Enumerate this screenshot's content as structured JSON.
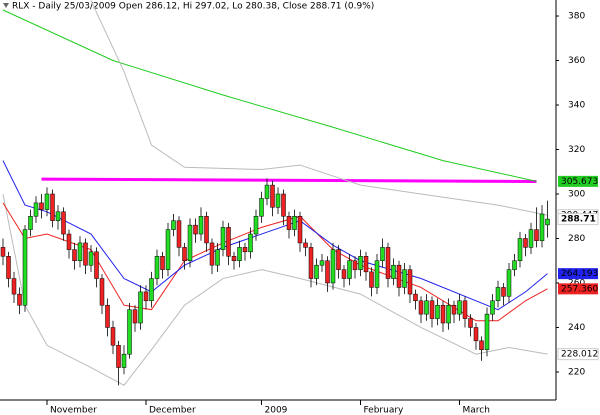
{
  "chart_data": {
    "type": "candlestick",
    "title": "RLX - Daily 25/03/2009 Open 286.12, Hi 297.02, Lo 280.38, Close 288.71 (0.9%)",
    "categories": [
      null,
      null,
      null,
      null,
      null,
      null,
      null,
      null,
      "November",
      null,
      null,
      null,
      null,
      null,
      null,
      null,
      null,
      null,
      null,
      null,
      null,
      null,
      null,
      null,
      null,
      null,
      "December",
      null,
      null,
      null,
      null,
      null,
      null,
      null,
      null,
      null,
      null,
      null,
      null,
      null,
      null,
      null,
      null,
      null,
      null,
      null,
      null,
      "2009",
      null,
      null,
      null,
      null,
      null,
      null,
      null,
      null,
      null,
      null,
      null,
      null,
      null,
      null,
      null,
      null,
      null,
      "February",
      null,
      null,
      null,
      null,
      null,
      null,
      null,
      null,
      null,
      null,
      null,
      null,
      null,
      null,
      null,
      null,
      null,
      "March",
      null,
      null,
      null,
      null,
      null,
      null,
      null,
      null,
      null,
      null,
      null,
      null,
      null,
      null,
      null,
      null
    ],
    "open": [
      276,
      272,
      262,
      255,
      250,
      284,
      290,
      296,
      293,
      300,
      288,
      292,
      282,
      275,
      270,
      278,
      268,
      274,
      262,
      250,
      240,
      232,
      222,
      228,
      248,
      242,
      256,
      252,
      262,
      272,
      266,
      284,
      288,
      276,
      270,
      286,
      282,
      290,
      278,
      268,
      275,
      285,
      272,
      270,
      276,
      274,
      282,
      290,
      298,
      304,
      294,
      300,
      290,
      284,
      290,
      278,
      276,
      262,
      268,
      270,
      260,
      275,
      266,
      262,
      270,
      266,
      272,
      265,
      258,
      270,
      276,
      262,
      268,
      258,
      266,
      255,
      252,
      246,
      252,
      244,
      250,
      242,
      250,
      246,
      252,
      244,
      240,
      234,
      230,
      246,
      252,
      258,
      254,
      266,
      270,
      280,
      276,
      284,
      279,
      286.12
    ],
    "high": [
      280,
      274,
      265,
      258,
      286,
      293,
      299,
      300,
      303,
      302,
      295,
      294,
      284,
      278,
      281,
      280,
      277,
      276,
      264,
      253,
      243,
      234,
      232,
      251,
      250,
      259,
      259,
      265,
      275,
      274,
      287,
      291,
      290,
      278,
      289,
      289,
      294,
      292,
      280,
      278,
      288,
      287,
      274,
      279,
      278,
      285,
      293,
      301,
      307,
      306,
      303,
      302,
      292,
      293,
      292,
      280,
      278,
      271,
      273,
      272,
      278,
      277,
      268,
      273,
      272,
      275,
      274,
      267,
      273,
      280,
      278,
      271,
      270,
      269,
      268,
      257,
      254,
      255,
      254,
      253,
      252,
      253,
      252,
      255,
      254,
      246,
      242,
      236,
      249,
      255,
      261,
      260,
      269,
      273,
      283,
      282,
      287,
      294,
      295,
      297.02
    ],
    "low": [
      268,
      258,
      251,
      246,
      247,
      281,
      287,
      289,
      290,
      285,
      284,
      279,
      271,
      266,
      267,
      264,
      265,
      258,
      246,
      236,
      228,
      214,
      219,
      226,
      238,
      239,
      248,
      249,
      259,
      262,
      263,
      281,
      272,
      266,
      267,
      278,
      279,
      274,
      264,
      265,
      272,
      268,
      266,
      267,
      270,
      271,
      279,
      287,
      295,
      290,
      291,
      286,
      280,
      281,
      274,
      272,
      258,
      259,
      265,
      256,
      257,
      262,
      258,
      259,
      262,
      263,
      261,
      254,
      255,
      267,
      258,
      259,
      254,
      255,
      251,
      248,
      242,
      243,
      240,
      241,
      238,
      239,
      242,
      243,
      240,
      236,
      230,
      225,
      227,
      243,
      249,
      250,
      251,
      263,
      267,
      272,
      273,
      276,
      276,
      280.38
    ],
    "close": [
      272,
      262,
      255,
      250,
      284,
      290,
      296,
      293,
      300,
      288,
      292,
      282,
      275,
      270,
      278,
      268,
      274,
      262,
      250,
      240,
      232,
      222,
      228,
      248,
      242,
      256,
      252,
      262,
      272,
      266,
      284,
      288,
      276,
      270,
      286,
      282,
      290,
      278,
      268,
      275,
      285,
      272,
      270,
      276,
      274,
      282,
      290,
      298,
      304,
      294,
      300,
      290,
      284,
      290,
      278,
      276,
      262,
      268,
      270,
      260,
      275,
      266,
      262,
      270,
      266,
      272,
      265,
      258,
      270,
      276,
      262,
      268,
      258,
      266,
      255,
      252,
      246,
      252,
      244,
      250,
      242,
      250,
      246,
      252,
      244,
      240,
      234,
      230,
      246,
      252,
      258,
      254,
      266,
      270,
      280,
      276,
      284,
      279,
      291,
      288.71
    ],
    "up_color": "#22dd22",
    "down_color": "#ee2222",
    "lines": [
      {
        "color": "#ff00ff",
        "width": 3,
        "x": [
          7,
          97
        ],
        "values": [
          306.7,
          305.6
        ]
      },
      {
        "color": "#22cc22",
        "width": 1,
        "label_bg": "#22cc22",
        "x": [
          0,
          20,
          40,
          60,
          80,
          97
        ],
        "values": [
          382.7,
          360,
          344.5,
          330,
          315,
          305.673
        ]
      },
      {
        "color": "#bbbbbb",
        "width": 1,
        "label_bg": "#ffffff",
        "x": [
          16,
          22,
          27,
          33,
          47,
          54,
          65,
          76,
          90,
          99
        ],
        "values": [
          387,
          355,
          322,
          312,
          311,
          313,
          304,
          300,
          295,
          290.447
        ]
      },
      {
        "color": "#bbbbbb",
        "width": 1,
        "label_bg": "#ffffff",
        "x": [
          0,
          4,
          8,
          16,
          22,
          27,
          33,
          40,
          47,
          54,
          65,
          76,
          86,
          92,
          99
        ],
        "values": [
          300,
          250,
          232,
          222,
          214,
          230,
          250,
          262,
          266,
          262,
          255,
          240,
          228,
          231,
          228.012
        ]
      },
      {
        "color": "#ee2222",
        "width": 1,
        "label_bg": "#ee2222",
        "x": [
          0,
          4,
          8,
          16,
          22,
          27,
          33,
          40,
          47,
          54,
          60,
          65,
          76,
          86,
          90,
          95,
          99
        ],
        "values": [
          296,
          280,
          282,
          275,
          250,
          248,
          270,
          278,
          285,
          290,
          275,
          268,
          258,
          243,
          243,
          252,
          257.36
        ],
        "value_labels": [
          null,
          null,
          null,
          null,
          null,
          null,
          null,
          null,
          null,
          null,
          null,
          null,
          null,
          null,
          null,
          null,
          "257.360"
        ]
      },
      {
        "color": "#2222ee",
        "width": 1,
        "label_bg": "#2222ee",
        "x": [
          0,
          4,
          8,
          16,
          22,
          27,
          33,
          40,
          47,
          54,
          60,
          65,
          76,
          86,
          90,
          95,
          99
        ],
        "values": [
          315,
          295,
          292,
          282,
          262,
          256,
          268,
          276,
          282,
          288,
          277,
          270,
          262,
          252,
          248,
          256,
          264.193
        ]
      }
    ],
    "ylim": [
      207.4,
      387.2
    ],
    "yticks": [
      220,
      240,
      260,
      280,
      300,
      320,
      340,
      360,
      380
    ]
  }
}
